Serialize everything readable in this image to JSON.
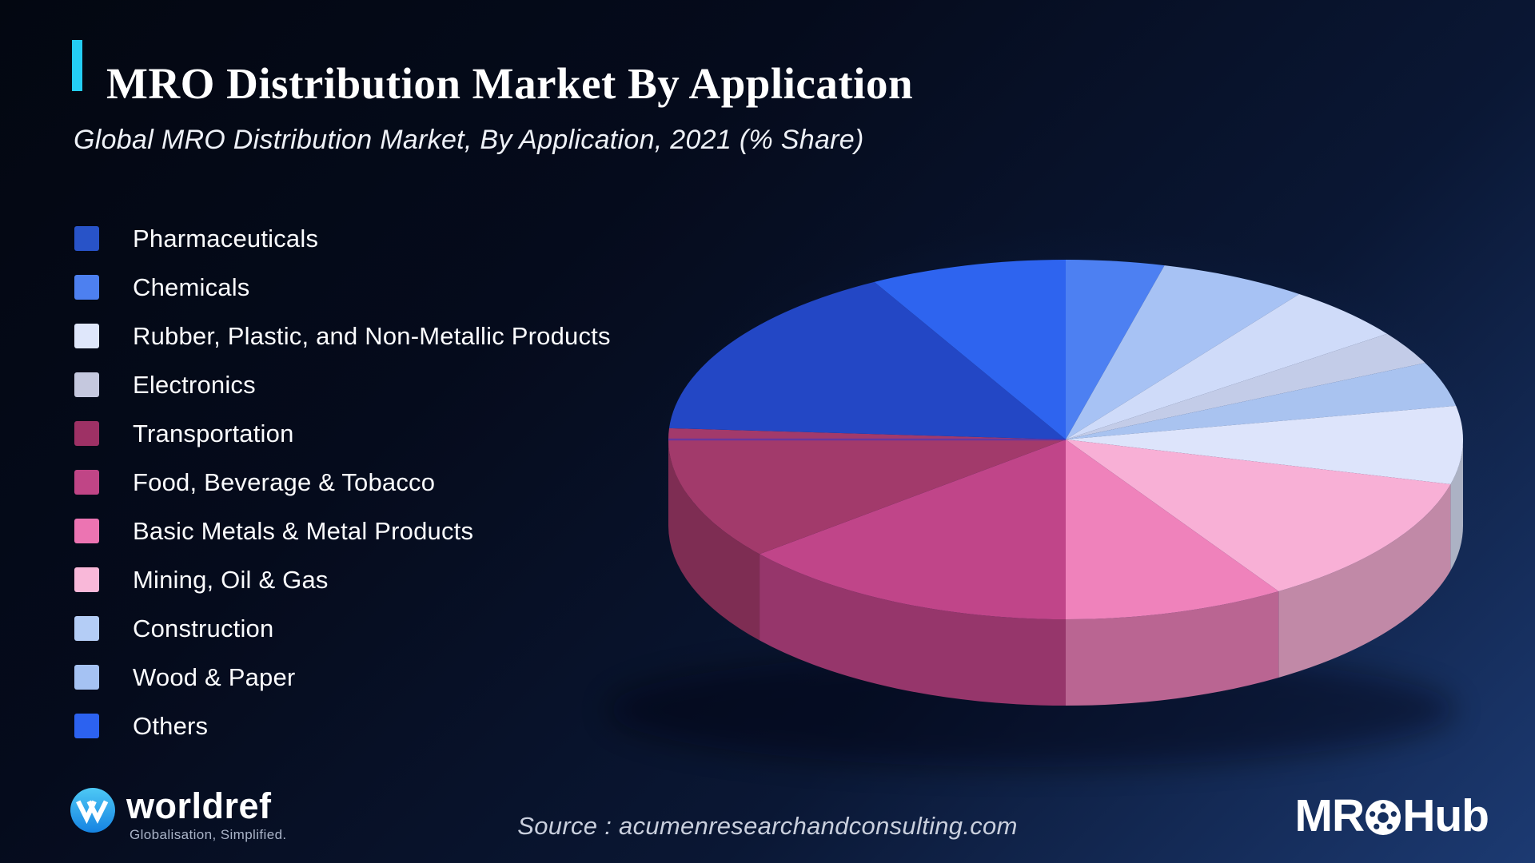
{
  "page": {
    "title": "MRO Distribution Market By Application",
    "subtitle": "Global MRO Distribution Market, By Application, 2021 (% Share)",
    "accent_color": "#24cdf4",
    "background_top_left": "#030711",
    "background_bottom_right": "#1c3a72"
  },
  "legend": {
    "items": [
      {
        "label": "Pharmaceuticals",
        "color": "#2853c8"
      },
      {
        "label": "Chemicals",
        "color": "#4d80f0"
      },
      {
        "label": "Rubber, Plastic, and Non-Metallic Products",
        "color": "#dfe7fb"
      },
      {
        "label": "Electronics",
        "color": "#c5c8de"
      },
      {
        "label": "Transportation",
        "color": "#9e3165"
      },
      {
        "label": "Food, Beverage & Tobacco",
        "color": "#c04586"
      },
      {
        "label": "Basic Metals & Metal Products",
        "color": "#ec74b2"
      },
      {
        "label": "Mining, Oil & Gas",
        "color": "#f9b8d9"
      },
      {
        "label": "Construction",
        "color": "#b4cdf6"
      },
      {
        "label": "Wood & Paper",
        "color": "#a5c2f3"
      },
      {
        "label": "Others",
        "color": "#2c62f0"
      }
    ]
  },
  "chart_data": {
    "type": "pie",
    "style": "3d",
    "title": "MRO Distribution Market By Application",
    "subtitle": "Global MRO Distribution Market, By Application, 2021 (% Share)",
    "unit": "% share (estimated from slice angles; no data labels shown)",
    "legend_position": "left",
    "categories": [
      "Pharmaceuticals",
      "Chemicals",
      "Rubber, Plastic, and Non-Metallic Products",
      "Electronics",
      "Transportation",
      "Food, Beverage & Tobacco",
      "Basic Metals & Metal Products",
      "Mining, Oil & Gas",
      "Construction",
      "Wood & Paper",
      "Others"
    ],
    "values": [
      16,
      4,
      7,
      3,
      12,
      14,
      9,
      12,
      9,
      6,
      8
    ],
    "start_angle_deg": 90,
    "direction": "clockwise",
    "draw_slices": [
      {
        "label": "Chemicals",
        "pct": 4,
        "color": "#4d80f2"
      },
      {
        "label": "Wood & Paper",
        "pct": 6,
        "color": "#a7c2f4"
      },
      {
        "label": "Construction",
        "pct": 5,
        "color": "#cfdbf9"
      },
      {
        "label": "Electronics",
        "pct": 3,
        "color": "#c3cce8"
      },
      {
        "label": "Construction",
        "pct": 4,
        "color": "#a9c3f0"
      },
      {
        "label": "Rubber, Plastic, and Non-Metallic Products",
        "pct": 7,
        "color": "#dde4fb"
      },
      {
        "label": "Mining, Oil & Gas",
        "pct": 12,
        "color": "#f8b0d6"
      },
      {
        "label": "Basic Metals & Metal Products",
        "pct": 9,
        "color": "#ef82bb"
      },
      {
        "label": "Food, Beverage & Tobacco",
        "pct": 14,
        "color": "#c04589"
      },
      {
        "label": "Transportation",
        "pct": 12,
        "color": "#a23a6b"
      },
      {
        "label": "Pharmaceuticals",
        "pct": 16,
        "color": "#2347c5"
      },
      {
        "label": "Others",
        "pct": 8,
        "color": "#2e64ef"
      }
    ]
  },
  "footer": {
    "worldref": {
      "name": "worldref",
      "tagline": "Globalisation, Simplified."
    },
    "source": "Source : acumenresearchandconsulting.com",
    "mrohub": {
      "pre": "MR",
      "post": "Hub"
    }
  }
}
